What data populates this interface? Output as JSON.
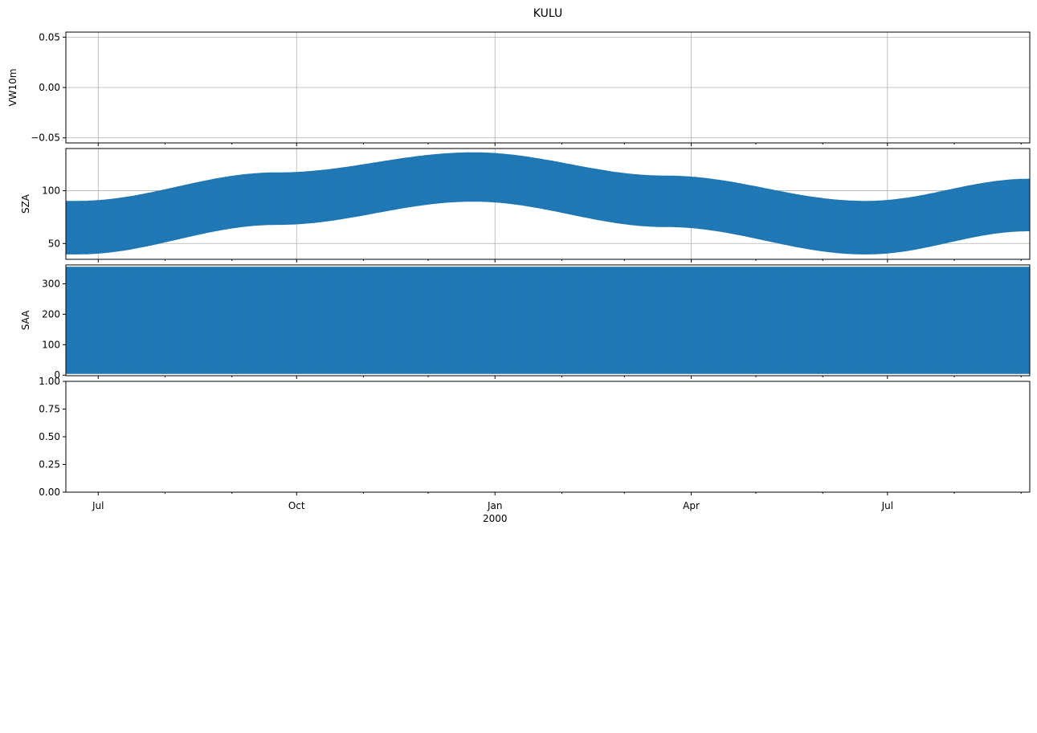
{
  "figure": {
    "title": "KULU"
  },
  "chart_data": [
    {
      "type": "line",
      "ylabel": "VW10m",
      "ylim": [
        -0.055,
        0.055
      ],
      "yticks": [
        -0.05,
        0.0,
        0.05
      ],
      "ytick_labels": [
        "−0.05",
        "0.00",
        "0.05"
      ],
      "grid": true,
      "series": [],
      "note_shared_x": true
    },
    {
      "type": "line",
      "ylabel": "SZA",
      "ylim": [
        35,
        140
      ],
      "yticks": [
        50,
        100
      ],
      "ytick_labels": [
        "50",
        "100"
      ],
      "grid": true,
      "color": "#1f77b4",
      "envelope": {
        "x": [
          "1999-06-21",
          "1999-09-22",
          "1999-12-22",
          "2000-03-20",
          "2000-06-21",
          "2000-09-05"
        ],
        "min": [
          40,
          68,
          90,
          66,
          40,
          62
        ],
        "max": [
          90,
          117,
          136,
          114,
          90,
          111
        ]
      }
    },
    {
      "type": "line",
      "ylabel": "SAA",
      "ylim": [
        -2,
        362
      ],
      "yticks": [
        0,
        100,
        200,
        300
      ],
      "ytick_labels": [
        "0",
        "100",
        "200",
        "300"
      ],
      "grid": false,
      "color": "#1f77b4",
      "envelope": {
        "x": [
          "1999-06-16",
          "2000-09-05"
        ],
        "min": [
          5,
          5
        ],
        "max": [
          355,
          355
        ]
      }
    },
    {
      "type": "line",
      "ylabel": "",
      "ylim": [
        0,
        1
      ],
      "yticks": [
        0,
        0.25,
        0.5,
        0.75,
        1.0
      ],
      "ytick_labels": [
        "0.00",
        "0.25",
        "0.50",
        "0.75",
        "1.00"
      ],
      "grid": false,
      "series": []
    }
  ],
  "xaxis": {
    "range": [
      "1999-06-16",
      "2000-09-05"
    ],
    "major_ticks": [
      "1999-07-01",
      "1999-10-01",
      "2000-01-01",
      "2000-04-01",
      "2000-07-01"
    ],
    "major_labels": [
      "Jul",
      "Oct",
      "Jan",
      "Apr",
      "Jul"
    ],
    "minor_ticks": [
      "1999-08-01",
      "1999-09-01",
      "1999-11-01",
      "1999-12-01",
      "2000-02-01",
      "2000-03-01",
      "2000-05-01",
      "2000-06-01",
      "2000-08-01",
      "2000-09-01"
    ],
    "year_label": "2000"
  }
}
